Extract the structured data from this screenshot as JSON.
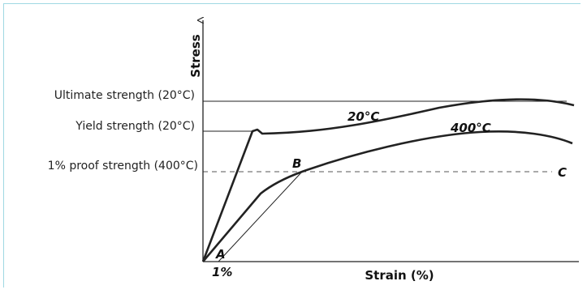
{
  "diagram": {
    "y_axis_title": "Stress",
    "x_axis_title": "Strain (%)",
    "levels": {
      "ultimate": "Ultimate strength (20°C)",
      "yield": "Yield strength (20°C)",
      "proof": "1% proof strength (400°C)"
    },
    "curves": {
      "curve_20": "20°C",
      "curve_400": "400°C"
    },
    "points": {
      "a": "A",
      "b": "B",
      "c": "C"
    },
    "offset_label": "1%",
    "colors": {
      "frame_border": "#9fd8e3",
      "ink": "#222222"
    }
  }
}
